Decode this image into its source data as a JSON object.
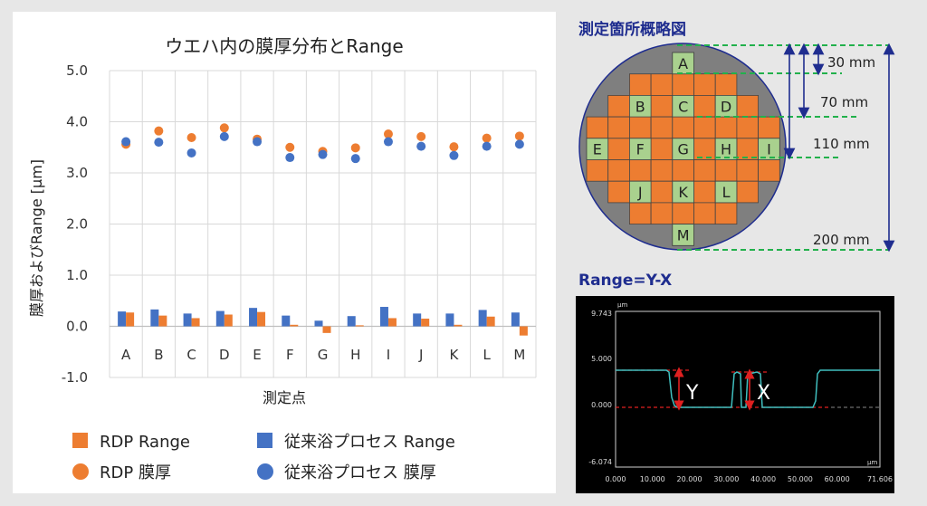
{
  "chart_data": {
    "type": "bar+scatter",
    "title": "ウエハ内の膜厚分布とRange",
    "xlabel": "測定点",
    "ylabel": "膜厚およびRange [µm]",
    "ylim": [
      -1.0,
      5.0
    ],
    "yticks": [
      "5.0",
      "4.0",
      "3.0",
      "2.0",
      "1.0",
      "0.0",
      "-1.0"
    ],
    "categories": [
      "A",
      "B",
      "C",
      "D",
      "E",
      "F",
      "G",
      "H",
      "I",
      "J",
      "K",
      "L",
      "M"
    ],
    "grid": true,
    "legend_position": "bottom",
    "series": [
      {
        "name": "RDP Range",
        "kind": "bar",
        "color": "#ed7d31",
        "values": [
          0.27,
          0.21,
          0.16,
          0.23,
          0.28,
          0.03,
          -0.13,
          0.02,
          0.16,
          0.15,
          0.03,
          0.19,
          -0.18
        ]
      },
      {
        "name": "従来浴プロセス Range",
        "kind": "bar",
        "color": "#4472c4",
        "values": [
          0.29,
          0.33,
          0.25,
          0.3,
          0.36,
          0.21,
          0.11,
          0.2,
          0.38,
          0.25,
          0.25,
          0.32,
          0.27
        ]
      },
      {
        "name": "RDP 膜厚",
        "kind": "scatter",
        "color": "#ed7d31",
        "values": [
          3.56,
          3.82,
          3.69,
          3.88,
          3.66,
          3.5,
          3.42,
          3.49,
          3.76,
          3.71,
          3.51,
          3.68,
          3.72
        ]
      },
      {
        "name": "従来浴プロセス 膜厚",
        "kind": "scatter",
        "color": "#4472c4",
        "values": [
          3.61,
          3.6,
          3.39,
          3.71,
          3.61,
          3.3,
          3.36,
          3.28,
          3.61,
          3.52,
          3.34,
          3.52,
          3.56
        ]
      }
    ]
  },
  "wafer": {
    "title": "測定箇所概略図",
    "points": [
      "A",
      "B",
      "C",
      "D",
      "E",
      "F",
      "G",
      "H",
      "I",
      "J",
      "K",
      "L",
      "M"
    ],
    "dimensions": [
      "30 mm",
      "70 mm",
      "110 mm",
      "200 mm"
    ]
  },
  "profile": {
    "title": "Range=Y-X",
    "y_unit": "µm",
    "x_unit": "µm",
    "y_ticks": [
      "9.743",
      "5.000",
      "0.000",
      "-6.074"
    ],
    "x_ticks": [
      "0.000",
      "10.000",
      "20.000",
      "30.000",
      "40.000",
      "50.000",
      "60.000",
      "71.606"
    ],
    "label_y": "Y",
    "label_x": "X"
  }
}
